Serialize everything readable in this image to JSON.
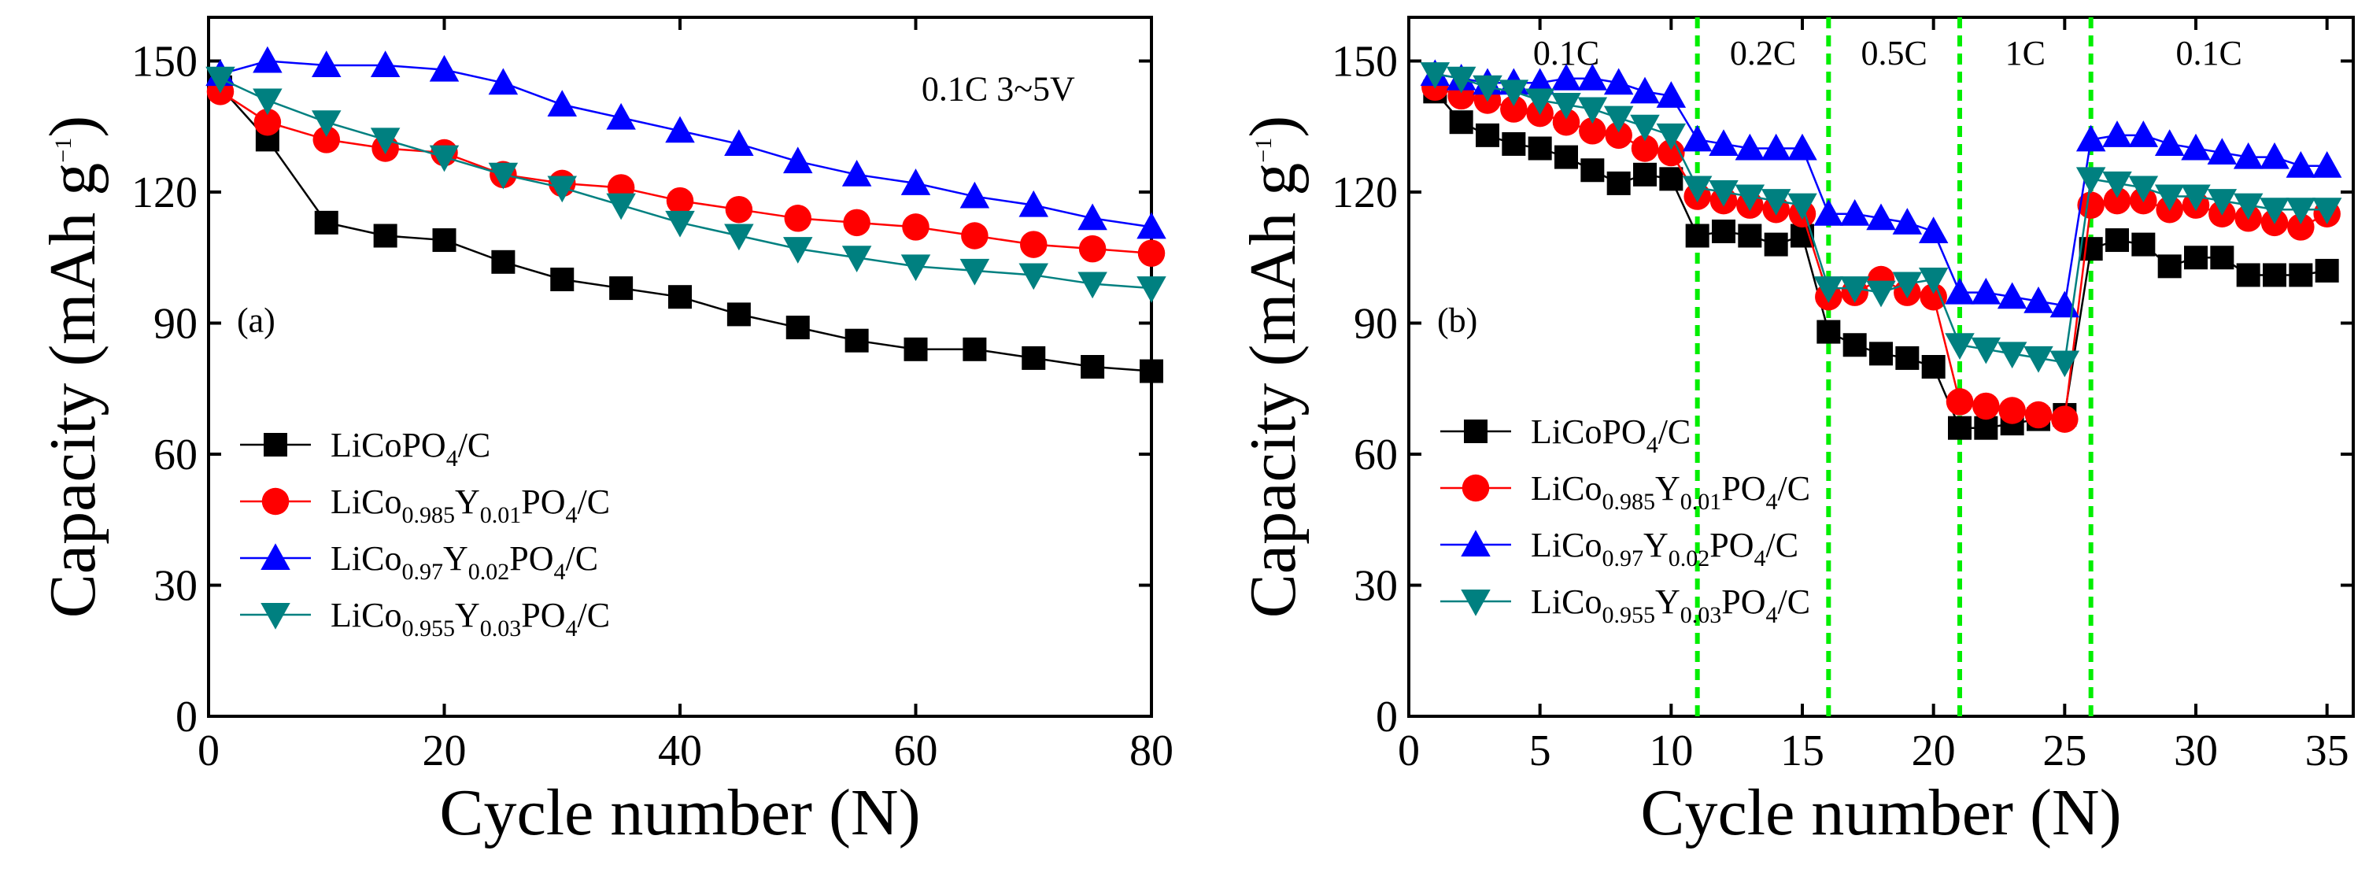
{
  "chart_data": [
    {
      "type": "scatter",
      "panel_label": "(a)",
      "xlabel": "Cycle number (N)",
      "ylabel": "Capacity (mAh g⁻¹)",
      "xlim": [
        0,
        80
      ],
      "ylim": [
        0,
        160
      ],
      "xticks": [
        0,
        20,
        40,
        60,
        80
      ],
      "yticks": [
        0,
        30,
        60,
        90,
        120,
        150
      ],
      "annotation": "0.1C  3~5V",
      "legend_position": "lower-left",
      "series": [
        {
          "name": "LiCoPO4/C",
          "marker": "square",
          "color": "#000000",
          "x": [
            1,
            5,
            10,
            15,
            20,
            25,
            30,
            35,
            40,
            45,
            50,
            55,
            60,
            65,
            70,
            75,
            80
          ],
          "y": [
            144,
            132,
            113,
            110,
            109,
            104,
            100,
            98,
            96,
            92,
            89,
            86,
            84,
            84,
            82,
            80,
            79
          ]
        },
        {
          "name": "LiCo0.985Y0.01PO4/C",
          "marker": "circle",
          "color": "#ff0000",
          "x": [
            1,
            5,
            10,
            15,
            20,
            25,
            30,
            35,
            40,
            45,
            50,
            55,
            60,
            65,
            70,
            75,
            80
          ],
          "y": [
            143,
            136,
            132,
            130,
            129,
            124,
            122,
            121,
            118,
            116,
            114,
            113,
            112,
            110,
            108,
            107,
            106
          ]
        },
        {
          "name": "LiCo0.97Y0.02PO4/C",
          "marker": "triangle-up",
          "color": "#0000ff",
          "x": [
            1,
            5,
            10,
            15,
            20,
            25,
            30,
            35,
            40,
            45,
            50,
            55,
            60,
            65,
            70,
            75,
            80
          ],
          "y": [
            147,
            150,
            149,
            149,
            148,
            145,
            140,
            137,
            134,
            131,
            127,
            124,
            122,
            119,
            117,
            114,
            112
          ]
        },
        {
          "name": "LiCo0.955Y0.03PO4/C",
          "marker": "triangle-down",
          "color": "#008080",
          "x": [
            1,
            5,
            10,
            15,
            20,
            25,
            30,
            35,
            40,
            45,
            50,
            55,
            60,
            65,
            70,
            75,
            80
          ],
          "y": [
            146,
            141,
            136,
            132,
            128,
            124,
            121,
            117,
            113,
            110,
            107,
            105,
            103,
            102,
            101,
            99,
            98
          ]
        }
      ]
    },
    {
      "type": "scatter",
      "panel_label": "(b)",
      "xlabel": "Cycle number (N)",
      "ylabel": "Capacity (mAh g⁻¹)",
      "xlim": [
        0,
        36
      ],
      "ylim": [
        0,
        160
      ],
      "xticks": [
        0,
        5,
        10,
        15,
        20,
        25,
        30,
        35
      ],
      "yticks": [
        0,
        30,
        60,
        90,
        120,
        150
      ],
      "legend_position": "lower-left",
      "rate_dividers": [
        11,
        16,
        21,
        26
      ],
      "rate_labels": [
        {
          "text": "0.1C",
          "x": 6
        },
        {
          "text": "0.2C",
          "x": 13.5
        },
        {
          "text": "0.5C",
          "x": 18.5
        },
        {
          "text": "1C",
          "x": 23.5
        },
        {
          "text": "0.1C",
          "x": 30.5
        }
      ],
      "series": [
        {
          "name": "LiCoPO4/C",
          "marker": "square",
          "color": "#000000",
          "x": [
            1,
            2,
            3,
            4,
            5,
            6,
            7,
            8,
            9,
            10,
            11,
            12,
            13,
            14,
            15,
            16,
            17,
            18,
            19,
            20,
            21,
            22,
            23,
            24,
            25,
            26,
            27,
            28,
            29,
            30,
            31,
            32,
            33,
            34,
            35
          ],
          "y": [
            143,
            136,
            133,
            131,
            130,
            128,
            125,
            122,
            124,
            123,
            110,
            111,
            110,
            108,
            110,
            88,
            85,
            83,
            82,
            80,
            66,
            66,
            67,
            68,
            69,
            107,
            109,
            108,
            103,
            105,
            105,
            101,
            101,
            101,
            102
          ]
        },
        {
          "name": "LiCo0.985Y0.01PO4/C",
          "marker": "circle",
          "color": "#ff0000",
          "x": [
            1,
            2,
            3,
            4,
            5,
            6,
            7,
            8,
            9,
            10,
            11,
            12,
            13,
            14,
            15,
            16,
            17,
            18,
            19,
            20,
            21,
            22,
            23,
            24,
            25,
            26,
            27,
            28,
            29,
            30,
            31,
            32,
            33,
            34,
            35
          ],
          "y": [
            144,
            142,
            141,
            139,
            138,
            136,
            134,
            133,
            130,
            129,
            119,
            118,
            117,
            116,
            115,
            96,
            97,
            100,
            97,
            96,
            72,
            71,
            70,
            69,
            68,
            117,
            118,
            118,
            116,
            117,
            115,
            114,
            113,
            112,
            115
          ]
        },
        {
          "name": "LiCo0.97Y0.02PO4/C",
          "marker": "triangle-up",
          "color": "#0000ff",
          "x": [
            1,
            2,
            3,
            4,
            5,
            6,
            7,
            8,
            9,
            10,
            11,
            12,
            13,
            14,
            15,
            16,
            17,
            18,
            19,
            20,
            21,
            22,
            23,
            24,
            25,
            26,
            27,
            28,
            29,
            30,
            31,
            32,
            33,
            34,
            35
          ],
          "y": [
            147,
            146,
            145,
            145,
            145,
            146,
            146,
            145,
            143,
            142,
            132,
            131,
            130,
            130,
            130,
            115,
            115,
            114,
            113,
            111,
            97,
            97,
            96,
            95,
            94,
            132,
            133,
            133,
            131,
            130,
            129,
            128,
            128,
            126,
            126
          ]
        },
        {
          "name": "LiCo0.955Y0.03PO4/C",
          "marker": "triangle-down",
          "color": "#008080",
          "x": [
            1,
            2,
            3,
            4,
            5,
            6,
            7,
            8,
            9,
            10,
            11,
            12,
            13,
            14,
            15,
            16,
            17,
            18,
            19,
            20,
            21,
            22,
            23,
            24,
            25,
            26,
            27,
            28,
            29,
            30,
            31,
            32,
            33,
            34,
            35
          ],
          "y": [
            147,
            146,
            144,
            143,
            141,
            140,
            139,
            137,
            135,
            133,
            121,
            120,
            119,
            118,
            117,
            98,
            98,
            97,
            99,
            100,
            85,
            84,
            83,
            82,
            81,
            123,
            122,
            121,
            119,
            119,
            118,
            117,
            116,
            116,
            116
          ]
        }
      ]
    }
  ],
  "legend_labels": [
    [
      {
        "t": "LiCoPO"
      },
      {
        "t": "4",
        "s": "sub"
      },
      {
        "t": "/C"
      }
    ],
    [
      {
        "t": "LiCo"
      },
      {
        "t": "0.985",
        "s": "sub"
      },
      {
        "t": "Y"
      },
      {
        "t": "0.01",
        "s": "sub"
      },
      {
        "t": "PO"
      },
      {
        "t": "4",
        "s": "sub"
      },
      {
        "t": "/C"
      }
    ],
    [
      {
        "t": "LiCo"
      },
      {
        "t": "0.97",
        "s": "sub"
      },
      {
        "t": "Y"
      },
      {
        "t": "0.02",
        "s": "sub"
      },
      {
        "t": "PO"
      },
      {
        "t": "4",
        "s": "sub"
      },
      {
        "t": "/C"
      }
    ],
    [
      {
        "t": "LiCo"
      },
      {
        "t": "0.955",
        "s": "sub"
      },
      {
        "t": "Y"
      },
      {
        "t": "0.03",
        "s": "sub"
      },
      {
        "t": "PO"
      },
      {
        "t": "4",
        "s": "sub"
      },
      {
        "t": "/C"
      }
    ]
  ],
  "ylabel_parts": [
    {
      "t": "Capacity (mAh g"
    },
    {
      "t": "−1",
      "s": "sup"
    },
    {
      "t": ")"
    }
  ],
  "colors": {
    "divider": "#00ee00",
    "axis": "#000000"
  }
}
